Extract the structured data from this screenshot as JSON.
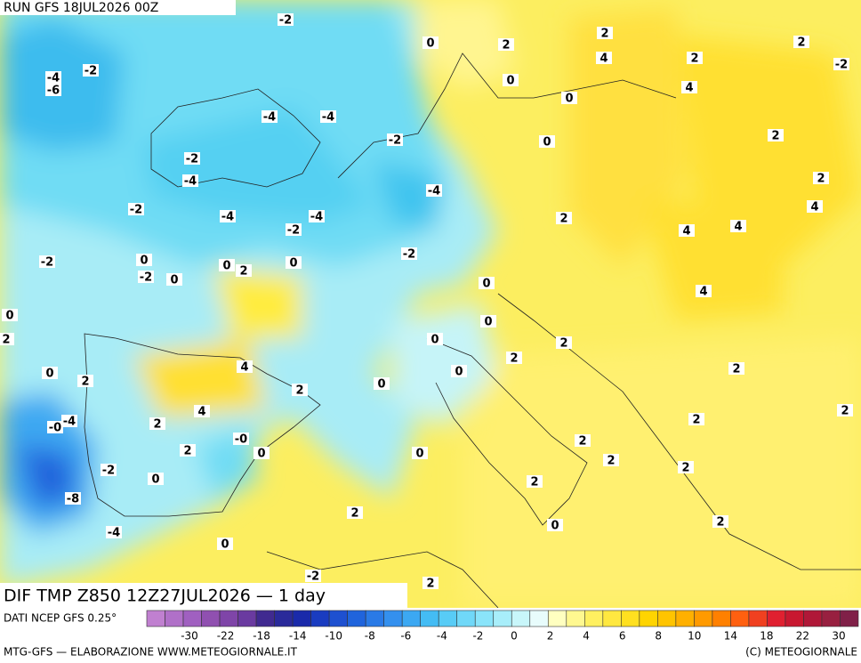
{
  "header": {
    "run": "RUN GFS 18JUL2026 00Z"
  },
  "map": {
    "labels": [
      "-2",
      "0",
      "2",
      "2",
      "4",
      "2",
      "2",
      "-2",
      "-4",
      "-6",
      "-2",
      "0",
      "0",
      "4",
      "-4",
      "-4",
      "-2",
      "0",
      "2",
      "-2",
      "-4",
      "-4",
      "2",
      "-2",
      "-4",
      "-4",
      "-2",
      "2",
      "4",
      "4",
      "4",
      "-2",
      "0",
      "-2",
      "0",
      "0",
      "2",
      "0",
      "-2",
      "0",
      "4",
      "0",
      "2",
      "0",
      "0",
      "2",
      "2",
      "4",
      "0",
      "2",
      "0",
      "0",
      "2",
      "2",
      "-0",
      "-4",
      "2",
      "4",
      "2",
      "2",
      "-0",
      "2",
      "0",
      "0",
      "2",
      "2",
      "-2",
      "0",
      "2",
      "2",
      "-8",
      "2",
      "0",
      "2",
      "-4",
      "0",
      "-2",
      "2"
    ]
  },
  "footer": {
    "title": "DIF TMP Z850 12Z27JUL2026 — 1 day",
    "source": "DATI NCEP GFS 0.25°",
    "credit": "MTG-GFS — ELABORAZIONE WWW.METEOGIORNALE.IT",
    "copyright": "(C) METEOGIORNALE"
  },
  "legend": {
    "labels": [
      "-30",
      "-22",
      "-18",
      "-14",
      "-10",
      "-8",
      "-6",
      "-4",
      "-2",
      "0",
      "2",
      "4",
      "6",
      "8",
      "10",
      "14",
      "18",
      "22",
      "30"
    ],
    "colors": [
      "#c080d0",
      "#b070c8",
      "#a060c0",
      "#9050b0",
      "#7f45a8",
      "#6a3aa0",
      "#402a90",
      "#2a2a9a",
      "#1a2aaa",
      "#1a3cc0",
      "#1e50d0",
      "#2064dc",
      "#2a7ae6",
      "#3490ee",
      "#3ca8f2",
      "#44bcf4",
      "#58ccf6",
      "#70d8f8",
      "#8ae4fa",
      "#a8eefa",
      "#c8f6fa",
      "#e8fcfc",
      "#ffffc0",
      "#fff890",
      "#fff060",
      "#ffe840",
      "#ffe020",
      "#ffd400",
      "#ffc400",
      "#ffb000",
      "#ff9a00",
      "#ff8000",
      "#ff6010",
      "#f04020",
      "#e02030",
      "#c81830",
      "#b01838",
      "#982040",
      "#802048"
    ]
  }
}
